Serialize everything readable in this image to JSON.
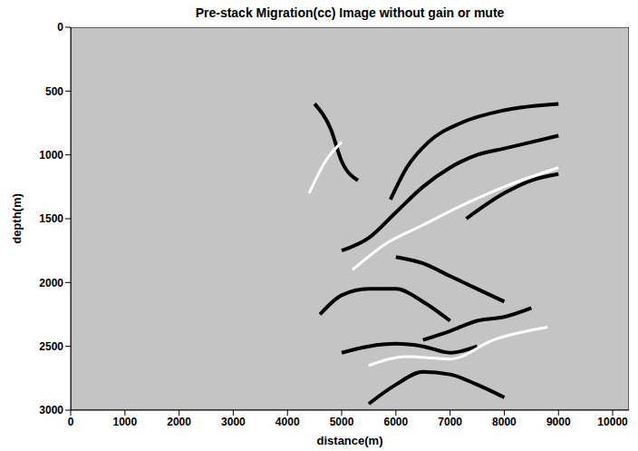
{
  "chart_data": {
    "type": "line",
    "title": "Pre-stack Migration(cc) Image without gain or mute",
    "x_label": "distance(m)",
    "y_label": "depth(m)",
    "xlim": [
      0,
      10300
    ],
    "xticks": [
      0,
      1000,
      2000,
      3000,
      4000,
      5000,
      6000,
      7000,
      8000,
      9000,
      10000
    ],
    "ylim": [
      0,
      3000
    ],
    "yticks": [
      0,
      500,
      1000,
      1500,
      2000,
      2500,
      3000
    ],
    "grid": false,
    "color": "#c4c4c4",
    "series": [
      {
        "color": "#000000",
        "x": [
          5000,
          5500,
          6000,
          6500,
          7000,
          7500,
          8000,
          9000
        ],
        "values": [
          1750,
          1650,
          1450,
          1250,
          1100,
          1000,
          950,
          850
        ]
      },
      {
        "color": "#000000",
        "x": [
          5900,
          6200,
          6600,
          7200,
          8000,
          9000
        ],
        "values": [
          1350,
          1100,
          900,
          750,
          650,
          600
        ]
      },
      {
        "color": "#000000",
        "x": [
          6000,
          6500,
          7000,
          7500,
          8000
        ],
        "values": [
          1800,
          1850,
          1950,
          2050,
          2150
        ]
      },
      {
        "color": "#000000",
        "x": [
          6500,
          7000,
          7500,
          8000,
          8500
        ],
        "values": [
          2450,
          2380,
          2300,
          2270,
          2200
        ]
      },
      {
        "color": "#000000",
        "x": [
          5000,
          5500,
          6000,
          6500,
          7000,
          7500
        ],
        "values": [
          2550,
          2500,
          2480,
          2500,
          2550,
          2500
        ]
      },
      {
        "color": "#000000",
        "x": [
          5500,
          6000,
          6500,
          7000,
          7500,
          8000
        ],
        "values": [
          2950,
          2800,
          2700,
          2720,
          2800,
          2900
        ]
      },
      {
        "color": "#000000",
        "x": [
          4600,
          5000,
          5500,
          6000,
          6500,
          7000
        ],
        "values": [
          2250,
          2100,
          2050,
          2050,
          2150,
          2300
        ]
      },
      {
        "color": "#000000",
        "x": [
          4500,
          4800,
          5000,
          5300
        ],
        "values": [
          600,
          800,
          1050,
          1200
        ]
      },
      {
        "color": "#000000",
        "x": [
          7300,
          8000,
          8500,
          9000
        ],
        "values": [
          1500,
          1300,
          1200,
          1150
        ]
      },
      {
        "color": "#ffffff",
        "x": [
          4400,
          4700,
          5000
        ],
        "values": [
          1300,
          1050,
          900
        ]
      },
      {
        "color": "#ffffff",
        "x": [
          5200,
          5800,
          6500,
          7200,
          8000,
          9000
        ],
        "values": [
          1900,
          1700,
          1550,
          1400,
          1250,
          1100
        ]
      },
      {
        "color": "#ffffff",
        "x": [
          5500,
          6200,
          7000,
          7800,
          8800
        ],
        "values": [
          2650,
          2580,
          2600,
          2450,
          2350
        ]
      }
    ]
  }
}
